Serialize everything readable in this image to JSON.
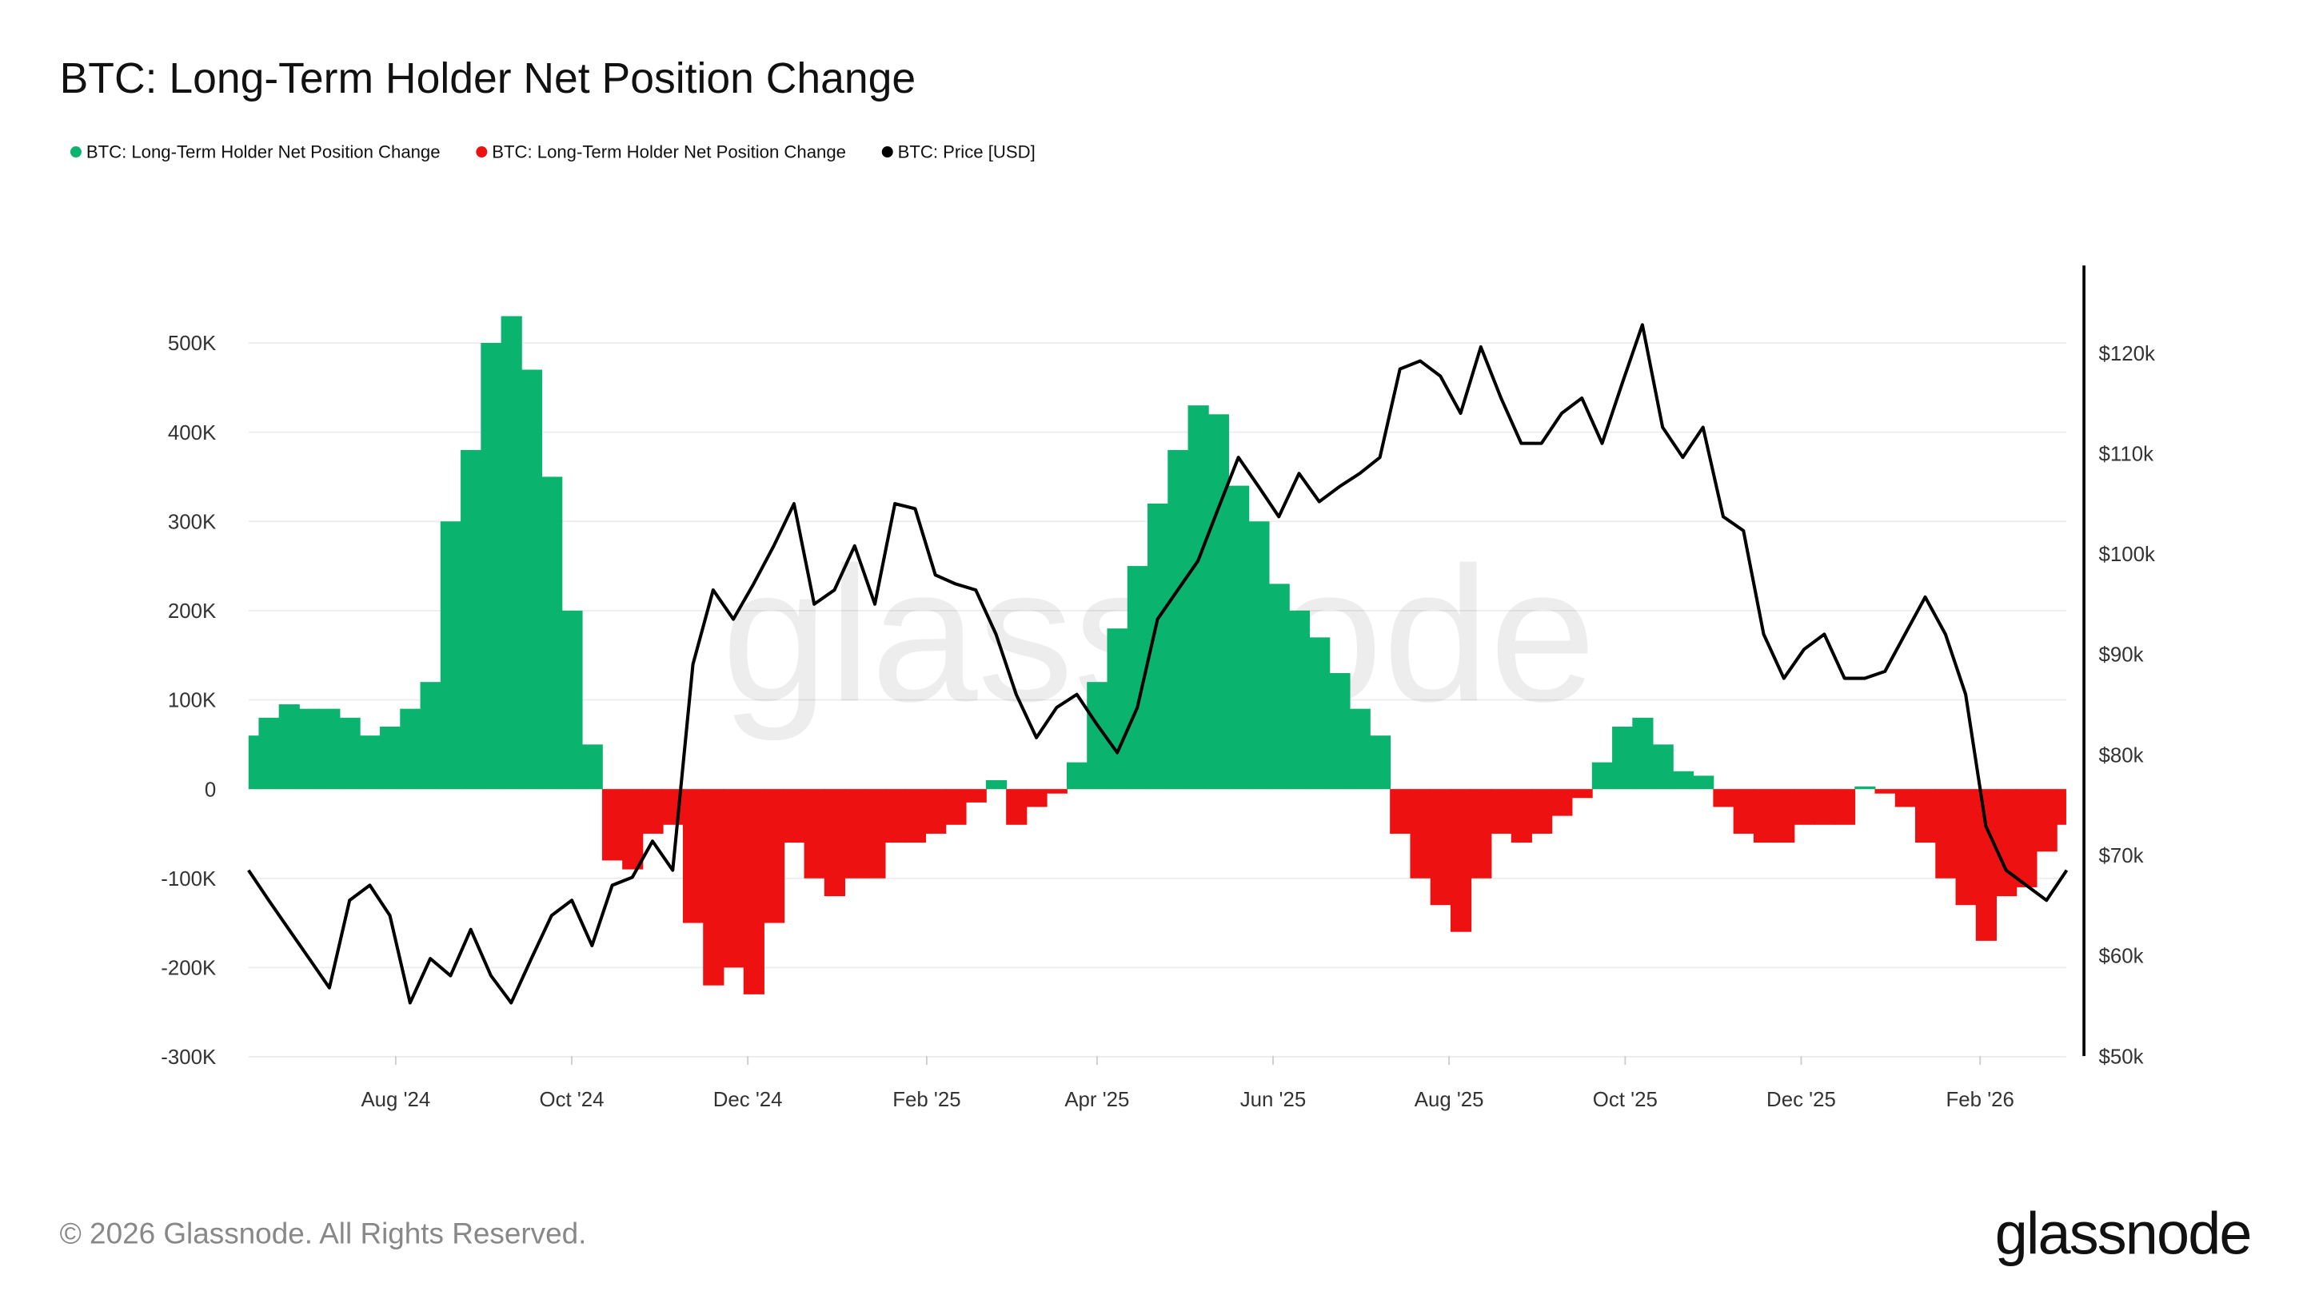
{
  "title": "BTC: Long-Term Holder Net Position Change",
  "legend": [
    {
      "label": "BTC: Long-Term Holder Net Position Change",
      "color": "#0bb46e"
    },
    {
      "label": "BTC: Long-Term Holder Net Position Change",
      "color": "#ee1111"
    },
    {
      "label": "BTC: Price [USD]",
      "color": "#000000"
    }
  ],
  "watermark": "glassnode",
  "footer": {
    "copyright": "© 2026 Glassnode. All Rights Reserved.",
    "logo": "glassnode"
  },
  "chart_data": {
    "type": "bar",
    "title": "BTC: Long-Term Holder Net Position Change",
    "legend_placement": "top-left",
    "grid": true,
    "y_left": {
      "range": [
        -300000,
        550000
      ],
      "ticks": [
        -300000,
        -200000,
        -100000,
        0,
        100000,
        200000,
        300000,
        400000,
        500000
      ],
      "tick_labels": [
        "-300K",
        "-200K",
        "-100K",
        "0",
        "100K",
        "200K",
        "300K",
        "400K",
        "500K"
      ]
    },
    "y_right": {
      "range": [
        50000,
        127000
      ],
      "ticks": [
        50000,
        60000,
        70000,
        80000,
        90000,
        100000,
        110000,
        120000
      ],
      "tick_labels": [
        "$50k",
        "$60k",
        "$70k",
        "$80k",
        "$90k",
        "$100k",
        "$110k",
        "$120k"
      ]
    },
    "x_ticks": [
      {
        "date": "2024-08-01",
        "label": "Aug '24"
      },
      {
        "date": "2024-10-01",
        "label": "Oct '24"
      },
      {
        "date": "2024-12-01",
        "label": "Dec '24"
      },
      {
        "date": "2025-02-01",
        "label": "Feb '25"
      },
      {
        "date": "2025-04-01",
        "label": "Apr '25"
      },
      {
        "date": "2025-06-01",
        "label": "Jun '25"
      },
      {
        "date": "2025-08-01",
        "label": "Aug '25"
      },
      {
        "date": "2025-10-01",
        "label": "Oct '25"
      },
      {
        "date": "2025-12-01",
        "label": "Dec '25"
      },
      {
        "date": "2026-02-01",
        "label": "Feb '26"
      }
    ],
    "positive_color": "#0bb46e",
    "negative_color": "#ee1111",
    "price_color": "#000000",
    "x": [
      "2024-06-11",
      "2024-06-18",
      "2024-06-25",
      "2024-07-02",
      "2024-07-09",
      "2024-07-16",
      "2024-07-23",
      "2024-07-30",
      "2024-08-06",
      "2024-08-13",
      "2024-08-20",
      "2024-08-27",
      "2024-09-03",
      "2024-09-10",
      "2024-09-17",
      "2024-09-24",
      "2024-10-01",
      "2024-10-08",
      "2024-10-15",
      "2024-10-22",
      "2024-10-29",
      "2024-11-05",
      "2024-11-12",
      "2024-11-19",
      "2024-11-26",
      "2024-12-03",
      "2024-12-10",
      "2024-12-17",
      "2024-12-24",
      "2024-12-31",
      "2025-01-07",
      "2025-01-14",
      "2025-01-21",
      "2025-01-28",
      "2025-02-04",
      "2025-02-11",
      "2025-02-18",
      "2025-02-25",
      "2025-03-04",
      "2025-03-11",
      "2025-03-18",
      "2025-03-25",
      "2025-04-01",
      "2025-04-08",
      "2025-04-15",
      "2025-04-22",
      "2025-04-29",
      "2025-05-06",
      "2025-05-13",
      "2025-05-20",
      "2025-05-27",
      "2025-06-03",
      "2025-06-10",
      "2025-06-17",
      "2025-06-24",
      "2025-07-01",
      "2025-07-08",
      "2025-07-15",
      "2025-07-22",
      "2025-07-29",
      "2025-08-05",
      "2025-08-12",
      "2025-08-19",
      "2025-08-26",
      "2025-09-02",
      "2025-09-09",
      "2025-09-16",
      "2025-09-23",
      "2025-09-30",
      "2025-10-07",
      "2025-10-14",
      "2025-10-21",
      "2025-10-28",
      "2025-11-04",
      "2025-11-11",
      "2025-11-18",
      "2025-11-25",
      "2025-12-02",
      "2025-12-09",
      "2025-12-16",
      "2025-12-23",
      "2025-12-30",
      "2026-01-06",
      "2026-01-13",
      "2026-01-20",
      "2026-01-27",
      "2026-02-03",
      "2026-02-10",
      "2026-02-17",
      "2026-02-24",
      "2026-03-03"
    ],
    "series": [
      {
        "name": "BTC: Long-Term Holder Net Position Change",
        "axis": "left",
        "values": [
          60000,
          80000,
          95000,
          90000,
          90000,
          80000,
          60000,
          70000,
          90000,
          120000,
          300000,
          380000,
          500000,
          530000,
          470000,
          350000,
          200000,
          50000,
          -80000,
          -90000,
          -50000,
          -40000,
          -150000,
          -220000,
          -200000,
          -230000,
          -150000,
          -60000,
          -100000,
          -120000,
          -100000,
          -100000,
          -60000,
          -60000,
          -50000,
          -40000,
          -15000,
          10000,
          -40000,
          -20000,
          -5000,
          30000,
          120000,
          180000,
          250000,
          320000,
          380000,
          430000,
          420000,
          340000,
          300000,
          230000,
          200000,
          170000,
          130000,
          90000,
          60000,
          -50000,
          -100000,
          -130000,
          -160000,
          -100000,
          -50000,
          -60000,
          -50000,
          -30000,
          -10000,
          30000,
          70000,
          80000,
          50000,
          20000,
          15000,
          -20000,
          -50000,
          -60000,
          -60000,
          -40000,
          -40000,
          -40000,
          3000,
          -5000,
          -20000,
          -60000,
          -100000,
          -130000,
          -170000,
          -120000,
          -110000,
          -70000,
          -40000
        ]
      },
      {
        "name": "BTC: Price [USD]",
        "axis": "right",
        "values": [
          68500,
          65500,
          62600,
          59700,
          56800,
          65500,
          67000,
          64000,
          55300,
          59700,
          58000,
          62600,
          58000,
          55300,
          59700,
          64000,
          65500,
          61000,
          67000,
          67800,
          71400,
          68500,
          89000,
          96400,
          93500,
          97000,
          100800,
          105000,
          95000,
          96400,
          100800,
          95000,
          105000,
          104500,
          97900,
          97000,
          96400,
          92000,
          86000,
          81700,
          84700,
          86000,
          83000,
          80200,
          84700,
          93500,
          96400,
          99300,
          104500,
          109600,
          106700,
          103700,
          108000,
          105200,
          106700,
          108000,
          109600,
          118400,
          119200,
          117700,
          114000,
          120600,
          115500,
          111000,
          111000,
          114000,
          115500,
          111000,
          117000,
          122800,
          112600,
          109600,
          112600,
          103700,
          102300,
          92000,
          87600,
          90500,
          92000,
          87600,
          87600,
          88300,
          92000,
          95700,
          92000,
          86000,
          72900,
          68500,
          67000,
          65500,
          68500
        ]
      }
    ]
  }
}
